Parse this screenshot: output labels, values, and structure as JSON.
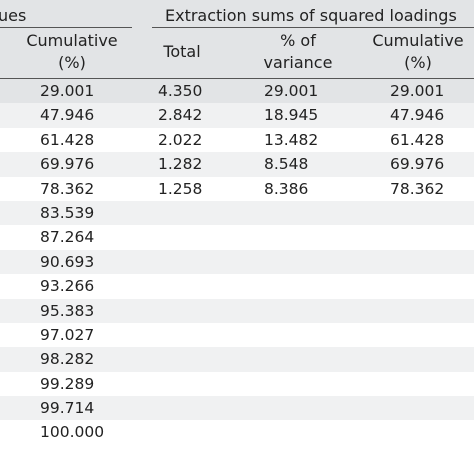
{
  "header": {
    "group_left": "ues",
    "group_right": "Extraction sums of squared loadings",
    "col_cumulative_left": [
      "Cumulative",
      "(%)"
    ],
    "col_total": [
      "Total"
    ],
    "col_pct_variance": [
      "% of",
      "variance"
    ],
    "col_cumulative_right": [
      "Cumulative",
      "(%)"
    ]
  },
  "rows": [
    {
      "cumulative_initial": "29.001",
      "total": "4.350",
      "pct_variance": "29.001",
      "cumulative": "29.001"
    },
    {
      "cumulative_initial": "47.946",
      "total": "2.842",
      "pct_variance": "18.945",
      "cumulative": "47.946"
    },
    {
      "cumulative_initial": "61.428",
      "total": "2.022",
      "pct_variance": "13.482",
      "cumulative": "61.428"
    },
    {
      "cumulative_initial": "69.976",
      "total": "1.282",
      "pct_variance": "8.548",
      "cumulative": "69.976"
    },
    {
      "cumulative_initial": "78.362",
      "total": "1.258",
      "pct_variance": "8.386",
      "cumulative": "78.362"
    },
    {
      "cumulative_initial": "83.539",
      "total": "",
      "pct_variance": "",
      "cumulative": ""
    },
    {
      "cumulative_initial": "87.264",
      "total": "",
      "pct_variance": "",
      "cumulative": ""
    },
    {
      "cumulative_initial": "90.693",
      "total": "",
      "pct_variance": "",
      "cumulative": ""
    },
    {
      "cumulative_initial": "93.266",
      "total": "",
      "pct_variance": "",
      "cumulative": ""
    },
    {
      "cumulative_initial": "95.383",
      "total": "",
      "pct_variance": "",
      "cumulative": ""
    },
    {
      "cumulative_initial": "97.027",
      "total": "",
      "pct_variance": "",
      "cumulative": ""
    },
    {
      "cumulative_initial": "98.282",
      "total": "",
      "pct_variance": "",
      "cumulative": ""
    },
    {
      "cumulative_initial": "99.289",
      "total": "",
      "pct_variance": "",
      "cumulative": ""
    },
    {
      "cumulative_initial": "99.714",
      "total": "",
      "pct_variance": "",
      "cumulative": ""
    },
    {
      "cumulative_initial": "100.000",
      "total": "",
      "pct_variance": "",
      "cumulative": ""
    }
  ]
}
